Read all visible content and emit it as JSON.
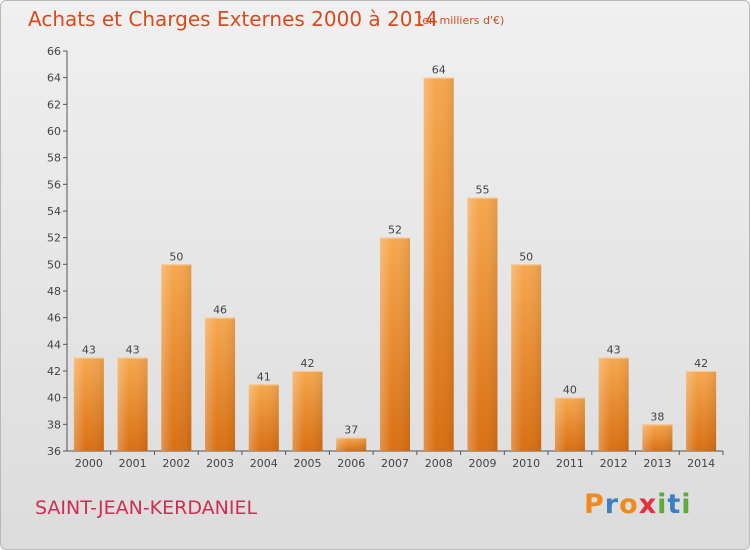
{
  "header": {
    "title": "Achats et Charges Externes 2000 à 2014",
    "unit": "(en milliers d'€)"
  },
  "footer": {
    "commune": "SAINT-JEAN-KERDANIEL",
    "logo_letters": [
      "P",
      "r",
      "o",
      "x",
      "i",
      "t",
      "i"
    ],
    "logo_colors": [
      "#f08a1d",
      "#3c7fc2",
      "#f08a1d",
      "#e62e3d",
      "#5cab3c",
      "#3c7fc2",
      "#5cab3c"
    ]
  },
  "colors": {
    "title": "#d64c1d",
    "commune": "#d12d4f",
    "bar_light": "#f6a84f",
    "bar_dark": "#d96f12",
    "text": "#444444"
  },
  "chart_data": {
    "type": "bar",
    "title": "Achats et Charges Externes 2000 à 2014",
    "categories": [
      "2000",
      "2001",
      "2002",
      "2003",
      "2004",
      "2005",
      "2006",
      "2007",
      "2008",
      "2009",
      "2010",
      "2011",
      "2012",
      "2013",
      "2014"
    ],
    "values": [
      43,
      43,
      50,
      46,
      41,
      42,
      37,
      52,
      64,
      55,
      50,
      40,
      43,
      38,
      42
    ],
    "ylim": [
      36,
      66
    ],
    "yticks": [
      36,
      38,
      40,
      42,
      44,
      46,
      48,
      50,
      52,
      54,
      56,
      58,
      60,
      62,
      64,
      66
    ],
    "xlabel": "",
    "ylabel": "",
    "grid": false,
    "legend": "none"
  }
}
